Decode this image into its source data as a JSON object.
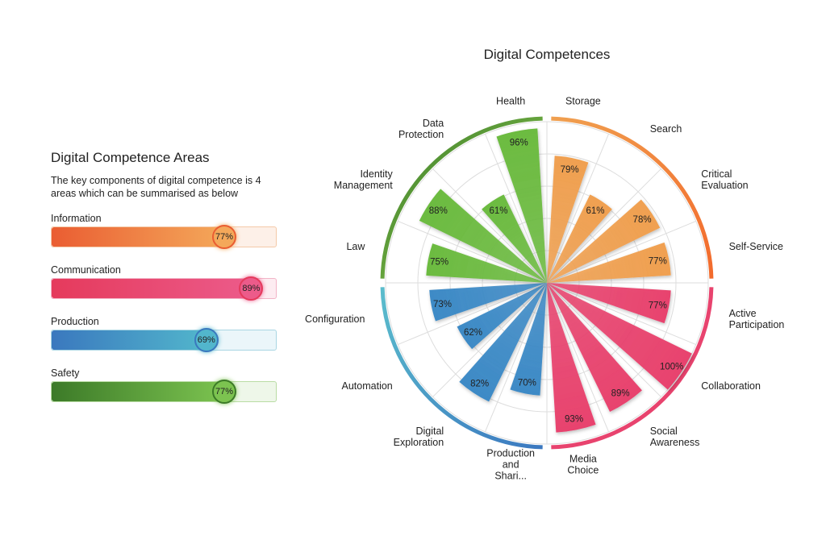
{
  "areas_panel": {
    "title": "Digital Competence Areas",
    "description": "The key components of digital competence is 4 areas which can be summarised as below",
    "bars": [
      {
        "label": "Information",
        "value": 77,
        "display": "77%",
        "color_start": "#ea5d32",
        "color_end": "#f4a85a",
        "track": "#fdf0e8",
        "border": "#f4c9a8"
      },
      {
        "label": "Communication",
        "value": 89,
        "display": "89%",
        "color_start": "#e53a5c",
        "color_end": "#ec5b8a",
        "track": "#fdecf1",
        "border": "#f2b4c7"
      },
      {
        "label": "Production",
        "value": 69,
        "display": "69%",
        "color_start": "#3a78be",
        "color_end": "#52b6cc",
        "track": "#ebf6fa",
        "border": "#a9d6e3"
      },
      {
        "label": "Safety",
        "value": 77,
        "display": "77%",
        "color_start": "#3c7a28",
        "color_end": "#7cc350",
        "track": "#eef7e9",
        "border": "#b9dca4"
      }
    ]
  },
  "chart_data": {
    "type": "polar-bar",
    "title": "Digital Competences",
    "rlim": [
      0,
      100
    ],
    "grid": true,
    "groups": [
      {
        "name": "Information",
        "color": "#f0a050",
        "ring_color": "#f0a050",
        "ring_color_end": "#f26a2c"
      },
      {
        "name": "Communication",
        "color": "#e8436e",
        "ring_color": "#e8436e",
        "ring_color_end": "#e8436e"
      },
      {
        "name": "Production",
        "color": "#3d8ac6",
        "ring_color": "#5bbdcc",
        "ring_color_end": "#3b78c0"
      },
      {
        "name": "Safety",
        "color": "#6cbb40",
        "ring_color": "#3f7f2a",
        "ring_color_end": "#8cc850"
      }
    ],
    "categories": [
      {
        "label": "Storage",
        "value": 79,
        "display": "79%",
        "group": 0
      },
      {
        "label": "Search",
        "value": 61,
        "display": "61%",
        "group": 0
      },
      {
        "label": "Critical Evaluation",
        "value": 78,
        "display": "78%",
        "group": 0
      },
      {
        "label": "Self-Service",
        "value": 77,
        "display": "77%",
        "group": 0
      },
      {
        "label": "Active Participation",
        "value": 77,
        "display": "77%",
        "group": 1
      },
      {
        "label": "Collaboration",
        "value": 100,
        "display": "100%",
        "group": 1
      },
      {
        "label": "Social Awareness",
        "value": 89,
        "display": "89%",
        "group": 1
      },
      {
        "label": "Media Choice",
        "value": 93,
        "display": "93%",
        "group": 1
      },
      {
        "label": "Production and Shari...",
        "value": 70,
        "display": "70%",
        "group": 2
      },
      {
        "label": "Digital Exploration",
        "value": 82,
        "display": "82%",
        "group": 2
      },
      {
        "label": "Automation",
        "value": 62,
        "display": "62%",
        "group": 2
      },
      {
        "label": "Configuration",
        "value": 73,
        "display": "73%",
        "group": 2
      },
      {
        "label": "Law",
        "value": 75,
        "display": "75%",
        "group": 3
      },
      {
        "label": "Identity Management",
        "value": 88,
        "display": "88%",
        "group": 3
      },
      {
        "label": "Data Protection",
        "value": 61,
        "display": "61%",
        "group": 3
      },
      {
        "label": "Health",
        "value": 96,
        "display": "96%",
        "group": 3
      }
    ]
  }
}
